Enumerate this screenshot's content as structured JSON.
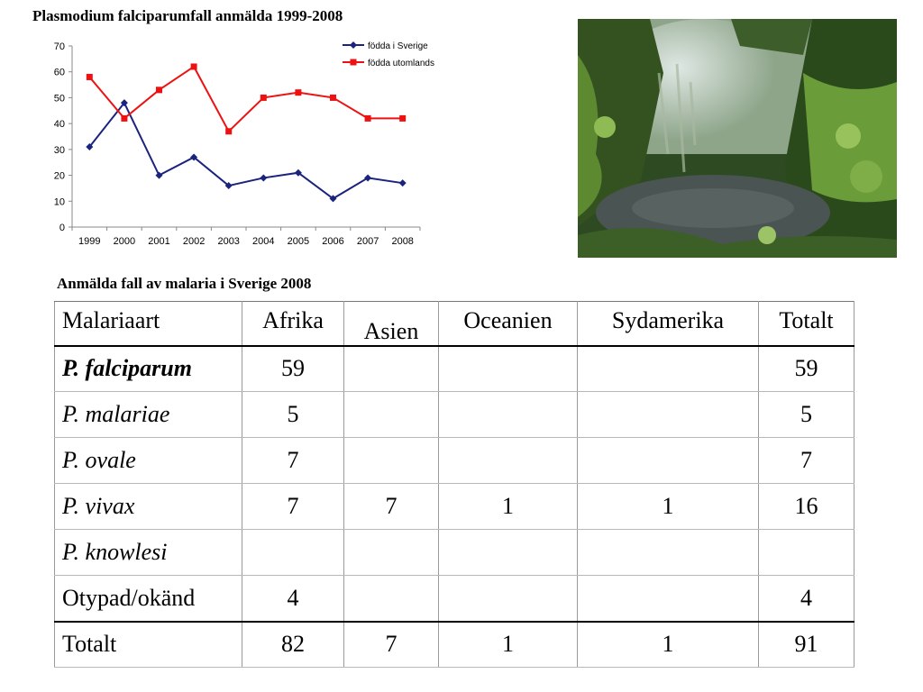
{
  "chart_data": {
    "type": "line",
    "title": "Plasmodium falciparumfall anmälda 1999-2008",
    "x": [
      "1999",
      "2000",
      "2001",
      "2002",
      "2003",
      "2004",
      "2005",
      "2006",
      "2007",
      "2008"
    ],
    "series": [
      {
        "name": "födda i Sverige",
        "color": "#1a237e",
        "marker": "diamond",
        "values": [
          31,
          48,
          20,
          27,
          16,
          19,
          21,
          11,
          19,
          17
        ]
      },
      {
        "name": "födda utomlands",
        "color": "#ee1111",
        "marker": "square",
        "values": [
          58,
          42,
          53,
          62,
          37,
          50,
          52,
          50,
          42,
          42
        ]
      }
    ],
    "ylim": [
      0,
      70
    ],
    "yticks": [
      0,
      10,
      20,
      30,
      40,
      50,
      60,
      70
    ],
    "grid": false,
    "legend": "top-right"
  },
  "photo": {
    "colors": {
      "sky": "#cfd8d6",
      "foliage_dark": "#27431c",
      "foliage_mid": "#4f7a2e",
      "foliage_light": "#8fb85a",
      "water": "#4c5654"
    }
  },
  "table": {
    "title": "Anmälda fall av malaria i Sverige 2008",
    "headers": [
      "Malariaart",
      "Afrika",
      "Asien",
      "Oceanien",
      "Sydamerika",
      "Totalt"
    ],
    "rows": [
      {
        "species": "P. falciparum",
        "values": [
          "59",
          "",
          "",
          "",
          "59"
        ]
      },
      {
        "species": "P. malariae",
        "values": [
          "5",
          "",
          "",
          "",
          "5"
        ]
      },
      {
        "species": "P. ovale",
        "values": [
          "7",
          "",
          "",
          "",
          "7"
        ]
      },
      {
        "species": "P. vivax",
        "values": [
          "7",
          "7",
          "1",
          "1",
          "16"
        ]
      },
      {
        "species": "P. knowlesi",
        "values": [
          "",
          "",
          "",
          "",
          ""
        ]
      },
      {
        "species": "Otypad/okänd",
        "values": [
          "4",
          "",
          "",
          "",
          "4"
        ]
      },
      {
        "species": "Totalt",
        "values": [
          "82",
          "7",
          "1",
          "1",
          "91"
        ]
      }
    ]
  }
}
